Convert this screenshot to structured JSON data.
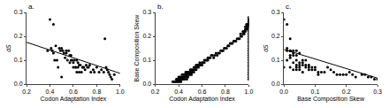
{
  "chart_data": [
    {
      "type": "scatter",
      "title": "a.",
      "xlabel": "Codon Adaptation Index",
      "ylabel": "dS",
      "xlim": [
        0.2,
        1.0
      ],
      "ylim": [
        0.0,
        0.3
      ],
      "xticks": [
        0.2,
        0.4,
        0.6,
        0.8,
        {
          "value": 1.0,
          "label": "1.0"
        }
      ],
      "yticks": [
        {
          "value": 0.0,
          "label": "0.0"
        },
        0.1,
        0.2,
        0.3
      ],
      "grid": false,
      "series": [
        {
          "type": "scatter",
          "color": "#000000",
          "x": [
            0.38,
            0.4,
            0.41,
            0.42,
            0.43,
            0.43,
            0.44,
            0.45,
            0.46,
            0.47,
            0.48,
            0.49,
            0.5,
            0.5,
            0.51,
            0.52,
            0.53,
            0.54,
            0.54,
            0.55,
            0.56,
            0.57,
            0.57,
            0.58,
            0.58,
            0.59,
            0.6,
            0.6,
            0.61,
            0.62,
            0.62,
            0.63,
            0.63,
            0.64,
            0.64,
            0.65,
            0.65,
            0.66,
            0.67,
            0.68,
            0.68,
            0.69,
            0.7,
            0.71,
            0.72,
            0.73,
            0.74,
            0.75,
            0.77,
            0.78,
            0.8,
            0.82,
            0.84,
            0.86,
            0.87,
            0.88,
            0.89,
            0.9,
            0.91,
            0.92,
            0.93,
            0.95
          ],
          "values": [
            0.14,
            0.27,
            0.15,
            0.14,
            0.25,
            0.13,
            0.1,
            0.16,
            0.1,
            0.07,
            0.15,
            0.14,
            0.15,
            0.03,
            0.14,
            0.13,
            0.11,
            0.14,
            0.13,
            0.1,
            0.14,
            0.09,
            0.12,
            0.1,
            0.12,
            0.1,
            0.09,
            0.07,
            0.1,
            0.07,
            0.07,
            0.05,
            0.1,
            0.07,
            0.09,
            0.05,
            0.08,
            0.08,
            0.05,
            0.07,
            0.07,
            0.07,
            0.06,
            0.08,
            0.07,
            0.07,
            0.08,
            0.05,
            0.06,
            0.05,
            0.07,
            0.05,
            0.06,
            0.05,
            0.19,
            0.07,
            0.06,
            0.05,
            0.04,
            0.03,
            0.02,
            0.04
          ]
        },
        {
          "type": "line",
          "color": "#000000",
          "x": [
            0.2,
            1.0
          ],
          "values": [
            0.175,
            0.045
          ]
        }
      ]
    },
    {
      "type": "scatter",
      "title": "b.",
      "xlabel": "Codon Adaptation Index",
      "ylabel": "Base Composition Skew",
      "xlim": [
        0.2,
        1.0
      ],
      "ylim": [
        0.0,
        0.3
      ],
      "xticks": [
        0.2,
        0.4,
        0.6,
        0.8,
        {
          "value": 1.0,
          "label": "1.0"
        }
      ],
      "yticks": [
        {
          "value": 0.0,
          "label": "0.0"
        },
        0.1,
        0.2,
        0.3
      ],
      "grid": false,
      "series": [
        {
          "type": "scatter",
          "color": "#000000",
          "x": [
            0.35,
            0.36,
            0.37,
            0.38,
            0.38,
            0.39,
            0.39,
            0.4,
            0.4,
            0.4,
            0.41,
            0.41,
            0.41,
            0.42,
            0.42,
            0.42,
            0.43,
            0.43,
            0.43,
            0.44,
            0.44,
            0.44,
            0.45,
            0.45,
            0.45,
            0.46,
            0.46,
            0.46,
            0.47,
            0.47,
            0.47,
            0.47,
            0.48,
            0.48,
            0.48,
            0.49,
            0.49,
            0.5,
            0.5,
            0.5,
            0.51,
            0.51,
            0.51,
            0.52,
            0.52,
            0.53,
            0.53,
            0.53,
            0.54,
            0.54,
            0.55,
            0.55,
            0.55,
            0.56,
            0.56,
            0.57,
            0.57,
            0.58,
            0.58,
            0.59,
            0.6,
            0.6,
            0.61,
            0.62,
            0.62,
            0.63,
            0.64,
            0.65,
            0.65,
            0.66,
            0.67,
            0.68,
            0.69,
            0.7,
            0.71,
            0.72,
            0.73,
            0.74,
            0.75,
            0.76,
            0.77,
            0.78,
            0.79,
            0.8,
            0.81,
            0.82,
            0.83,
            0.84,
            0.85,
            0.86,
            0.87,
            0.88,
            0.89,
            0.9,
            0.91,
            0.92,
            0.93,
            0.93,
            0.94,
            0.95,
            0.95,
            0.96,
            0.96,
            0.97,
            0.97,
            0.97,
            0.98,
            0.98,
            0.98,
            0.99,
            0.99,
            0.99,
            1.0,
            1.0,
            1.0,
            1.0,
            1.0,
            1.0,
            1.0,
            1.0,
            1.0,
            1.0,
            1.0,
            1.0,
            1.0,
            1.0,
            1.0,
            1.0,
            1.0,
            1.0,
            1.0,
            1.0,
            1.0,
            1.0,
            1.0,
            1.0,
            1.0,
            1.0,
            1.0,
            1.0,
            1.0,
            1.0,
            1.0,
            1.0,
            1.0,
            1.0
          ],
          "values": [
            0.01,
            0.01,
            0.01,
            0.02,
            0.01,
            0.02,
            0.01,
            0.02,
            0.01,
            0.03,
            0.02,
            0.01,
            0.03,
            0.02,
            0.03,
            0.01,
            0.03,
            0.02,
            0.04,
            0.03,
            0.02,
            0.04,
            0.03,
            0.04,
            0.02,
            0.04,
            0.03,
            0.05,
            0.04,
            0.03,
            0.05,
            0.02,
            0.05,
            0.04,
            0.03,
            0.05,
            0.04,
            0.05,
            0.04,
            0.06,
            0.05,
            0.04,
            0.06,
            0.05,
            0.06,
            0.06,
            0.05,
            0.07,
            0.06,
            0.07,
            0.07,
            0.06,
            0.08,
            0.07,
            0.08,
            0.07,
            0.08,
            0.08,
            0.09,
            0.08,
            0.09,
            0.08,
            0.09,
            0.1,
            0.09,
            0.1,
            0.1,
            0.11,
            0.1,
            0.11,
            0.11,
            0.12,
            0.12,
            0.11,
            0.12,
            0.13,
            0.12,
            0.13,
            0.13,
            0.14,
            0.14,
            0.14,
            0.15,
            0.15,
            0.15,
            0.16,
            0.16,
            0.17,
            0.17,
            0.17,
            0.18,
            0.18,
            0.18,
            0.19,
            0.19,
            0.19,
            0.2,
            0.21,
            0.2,
            0.21,
            0.22,
            0.21,
            0.22,
            0.22,
            0.23,
            0.24,
            0.23,
            0.24,
            0.25,
            0.23,
            0.24,
            0.25,
            0.04,
            0.05,
            0.06,
            0.07,
            0.08,
            0.09,
            0.1,
            0.11,
            0.12,
            0.13,
            0.14,
            0.15,
            0.16,
            0.17,
            0.18,
            0.19,
            0.2,
            0.21,
            0.22,
            0.23,
            0.24,
            0.25,
            0.26,
            0.27,
            0.24,
            0.25,
            0.26,
            0.27,
            0.25,
            0.26,
            0.27,
            0.28,
            0.02,
            0.03
          ]
        }
      ]
    },
    {
      "type": "scatter",
      "title": "c.",
      "xlabel": "Base Composition Skew",
      "ylabel": "dS",
      "xlim": [
        0.0,
        0.3
      ],
      "ylim": [
        0.0,
        0.3
      ],
      "xticks": [
        {
          "value": 0.0,
          "label": "0.0"
        },
        0.1,
        0.2,
        0.3
      ],
      "yticks": [
        {
          "value": 0.0,
          "label": "0.0"
        },
        0.1,
        0.2,
        0.3
      ],
      "grid": false,
      "series": [
        {
          "type": "scatter",
          "color": "#000000",
          "x": [
            0.0,
            0.0,
            0.01,
            0.01,
            0.01,
            0.01,
            0.02,
            0.02,
            0.02,
            0.02,
            0.02,
            0.02,
            0.03,
            0.03,
            0.03,
            0.03,
            0.03,
            0.04,
            0.04,
            0.04,
            0.04,
            0.04,
            0.04,
            0.05,
            0.05,
            0.05,
            0.05,
            0.05,
            0.06,
            0.06,
            0.06,
            0.06,
            0.07,
            0.07,
            0.07,
            0.08,
            0.08,
            0.08,
            0.09,
            0.09,
            0.1,
            0.1,
            0.11,
            0.11,
            0.12,
            0.13,
            0.14,
            0.15,
            0.16,
            0.17,
            0.18,
            0.19,
            0.2,
            0.21,
            0.22,
            0.23,
            0.25,
            0.26,
            0.27,
            0.28,
            0.29,
            0.3
          ],
          "values": [
            0.27,
            0.07,
            0.25,
            0.15,
            0.14,
            0.1,
            0.19,
            0.14,
            0.14,
            0.12,
            0.11,
            0.07,
            0.14,
            0.13,
            0.12,
            0.09,
            0.06,
            0.14,
            0.12,
            0.1,
            0.08,
            0.07,
            0.06,
            0.13,
            0.09,
            0.08,
            0.07,
            0.06,
            0.1,
            0.09,
            0.08,
            0.05,
            0.1,
            0.08,
            0.07,
            0.08,
            0.07,
            0.06,
            0.07,
            0.06,
            0.07,
            0.06,
            0.05,
            0.04,
            0.05,
            0.05,
            0.07,
            0.06,
            0.05,
            0.04,
            0.04,
            0.04,
            0.04,
            0.05,
            0.04,
            0.03,
            0.04,
            0.04,
            0.03,
            0.03,
            0.02,
            0.02
          ]
        },
        {
          "type": "line",
          "color": "#000000",
          "x": [
            0.0,
            0.3
          ],
          "values": [
            0.145,
            0.025
          ]
        }
      ]
    }
  ]
}
